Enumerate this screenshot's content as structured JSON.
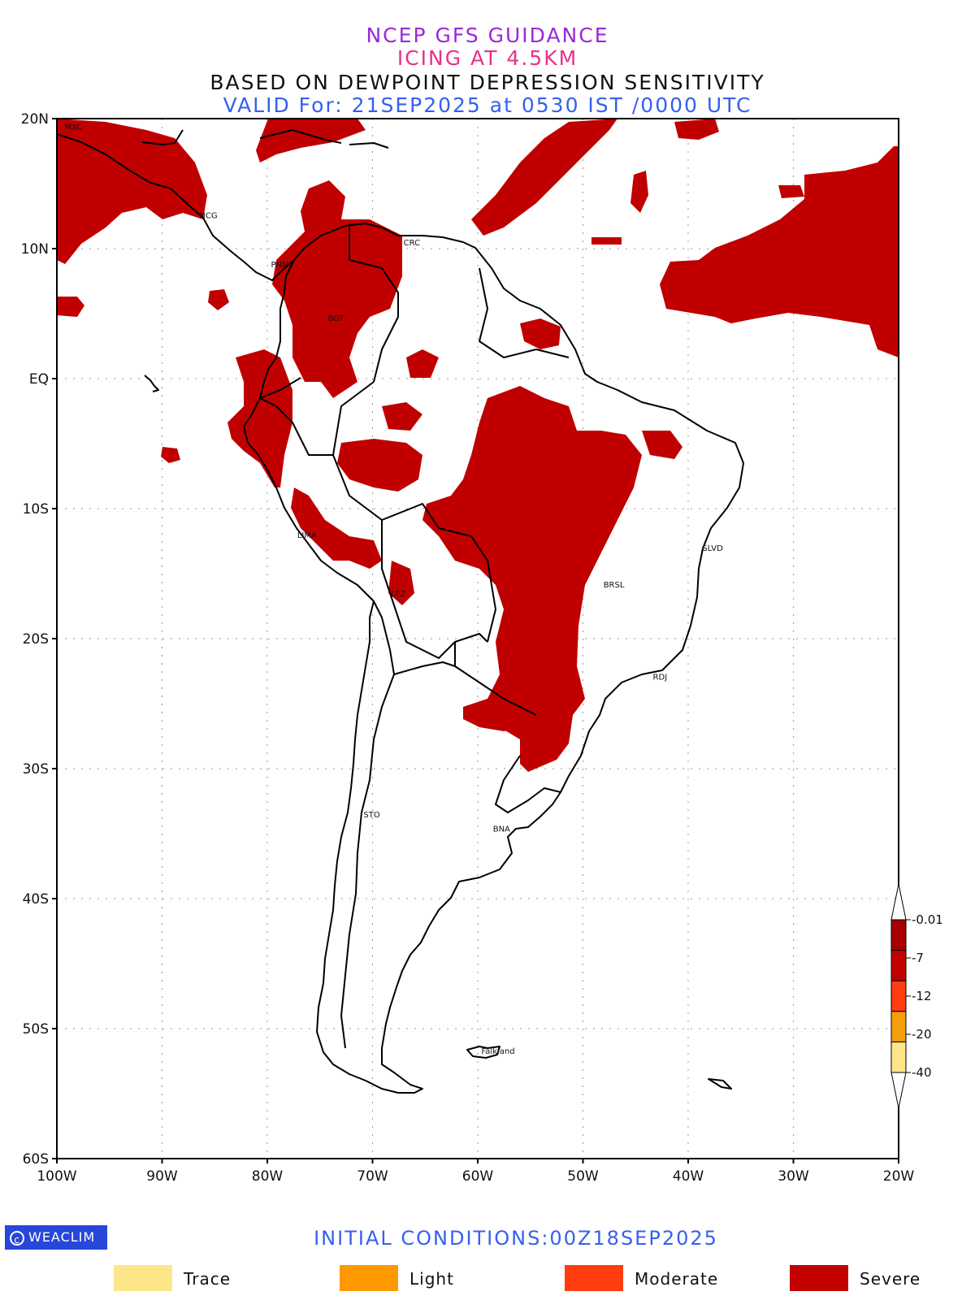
{
  "titles": {
    "line1": "NCEP GFS GUIDANCE",
    "line2": "ICING AT 4.5KM",
    "line3": "BASED ON DEWPOINT DEPRESSION SENSITIVITY",
    "line4": "VALID For: 21SEP2025 at 0530 IST /0000 UTC"
  },
  "map": {
    "lon_range": [
      -100,
      -20
    ],
    "lat_range": [
      -60,
      20
    ],
    "lat_ticks": [
      {
        "lat": 20,
        "label": "20N"
      },
      {
        "lat": 10,
        "label": "10N"
      },
      {
        "lat": 0,
        "label": "EQ"
      },
      {
        "lat": -10,
        "label": "10S"
      },
      {
        "lat": -20,
        "label": "20S"
      },
      {
        "lat": -30,
        "label": "30S"
      },
      {
        "lat": -40,
        "label": "40S"
      },
      {
        "lat": -50,
        "label": "50S"
      },
      {
        "lat": -60,
        "label": "60S"
      }
    ],
    "lon_ticks": [
      {
        "lon": -100,
        "label": "100W"
      },
      {
        "lon": -90,
        "label": "90W"
      },
      {
        "lon": -80,
        "label": "80W"
      },
      {
        "lon": -70,
        "label": "70W"
      },
      {
        "lon": -60,
        "label": "60W"
      },
      {
        "lon": -50,
        "label": "50W"
      },
      {
        "lon": -40,
        "label": "40W"
      },
      {
        "lon": -30,
        "label": "30W"
      },
      {
        "lon": -20,
        "label": "20W"
      }
    ],
    "cities": [
      {
        "name": "MXC",
        "lon": -99.1,
        "lat": 19.4
      },
      {
        "name": "NCG",
        "lon": -86.3,
        "lat": 12.6
      },
      {
        "name": "CRC",
        "lon": -66.9,
        "lat": 10.5
      },
      {
        "name": "PNM",
        "lon": -79.5,
        "lat": 8.8
      },
      {
        "name": "BGT",
        "lon": -74.1,
        "lat": 4.7
      },
      {
        "name": "LIMA",
        "lon": -77.0,
        "lat": -12.0
      },
      {
        "name": "LPZ",
        "lon": -68.1,
        "lat": -16.5
      },
      {
        "name": "SLVD",
        "lon": -38.5,
        "lat": -13.0
      },
      {
        "name": "BRSL",
        "lon": -47.9,
        "lat": -15.8
      },
      {
        "name": "RDJ",
        "lon": -43.2,
        "lat": -22.9
      },
      {
        "name": "STO",
        "lon": -70.7,
        "lat": -33.5
      },
      {
        "name": "BNA",
        "lon": -58.4,
        "lat": -34.6
      },
      {
        "name": "Falkland",
        "lon": -59.5,
        "lat": -51.7
      }
    ],
    "icing_color": "#c00000"
  },
  "colorbar": {
    "colors": [
      "#fde68a",
      "#f59e0b",
      "#ff3d0e",
      "#c20000",
      "#a80000"
    ],
    "labels": [
      "-0.01",
      "-7",
      "-12",
      "-20",
      "-40"
    ]
  },
  "footer": {
    "brand": "WEACLIM",
    "initial_conditions": "INITIAL CONDITIONS:00Z18SEP2025"
  },
  "legend": [
    {
      "label": "Trace",
      "color": "#fde68a"
    },
    {
      "label": "Light",
      "color": "#ff9900"
    },
    {
      "label": "Moderate",
      "color": "#ff3d0e"
    },
    {
      "label": "Severe",
      "color": "#c20000"
    }
  ]
}
